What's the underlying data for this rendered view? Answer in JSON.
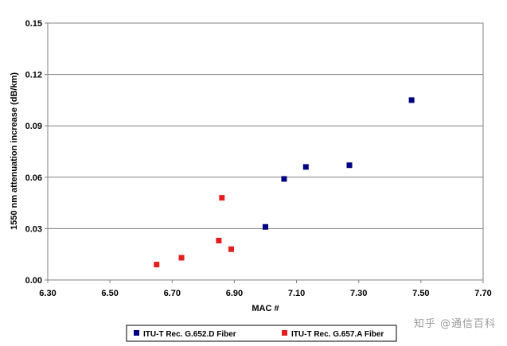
{
  "chart_data": {
    "type": "scatter",
    "title": "",
    "xlabel": "MAC #",
    "ylabel": "1550 nm attenuation increase (dB/km)",
    "xlim": [
      6.3,
      7.7
    ],
    "ylim": [
      0.0,
      0.15
    ],
    "x_ticks": [
      "6.30",
      "6.50",
      "6.70",
      "6.90",
      "7.10",
      "7.30",
      "7.50",
      "7.70"
    ],
    "y_ticks": [
      "0.00",
      "0.03",
      "0.06",
      "0.09",
      "0.12",
      "0.15"
    ],
    "grid": "horizontal",
    "legend_position": "bottom",
    "series": [
      {
        "name": "ITU-T Rec. G.652.D Fiber",
        "color": "#000080",
        "marker": "square",
        "points": [
          {
            "x": 7.0,
            "y": 0.031
          },
          {
            "x": 7.06,
            "y": 0.059
          },
          {
            "x": 7.13,
            "y": 0.066
          },
          {
            "x": 7.27,
            "y": 0.067
          },
          {
            "x": 7.47,
            "y": 0.105
          }
        ]
      },
      {
        "name": "ITU-T Rec. G.657.A Fiber",
        "color": "#e41e1e",
        "marker": "square",
        "points": [
          {
            "x": 6.65,
            "y": 0.009
          },
          {
            "x": 6.73,
            "y": 0.013
          },
          {
            "x": 6.85,
            "y": 0.023
          },
          {
            "x": 6.86,
            "y": 0.048
          },
          {
            "x": 6.89,
            "y": 0.018
          }
        ]
      }
    ]
  },
  "watermark": "知乎 @通信百科"
}
